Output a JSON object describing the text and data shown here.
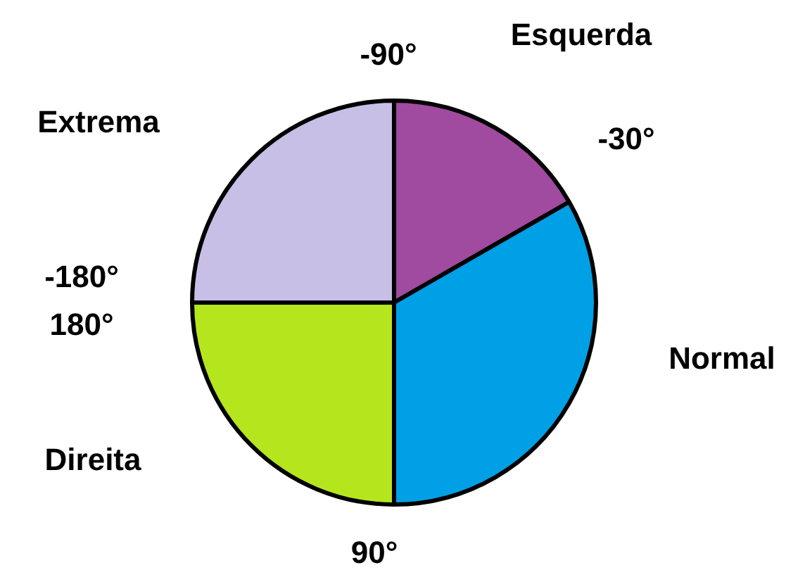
{
  "chart_data": {
    "type": "pie",
    "categories": [
      "Esquerda",
      "Normal",
      "Direita",
      "Extrema"
    ],
    "values": [
      16.7,
      33.3,
      25,
      25
    ],
    "colors": [
      "#a04aa0",
      "#00a0e6",
      "#b5e61d",
      "#c8bfe7"
    ],
    "legend": false,
    "annotations": [
      "-90°",
      "-30°",
      "90°",
      "-180°",
      "180°"
    ]
  }
}
